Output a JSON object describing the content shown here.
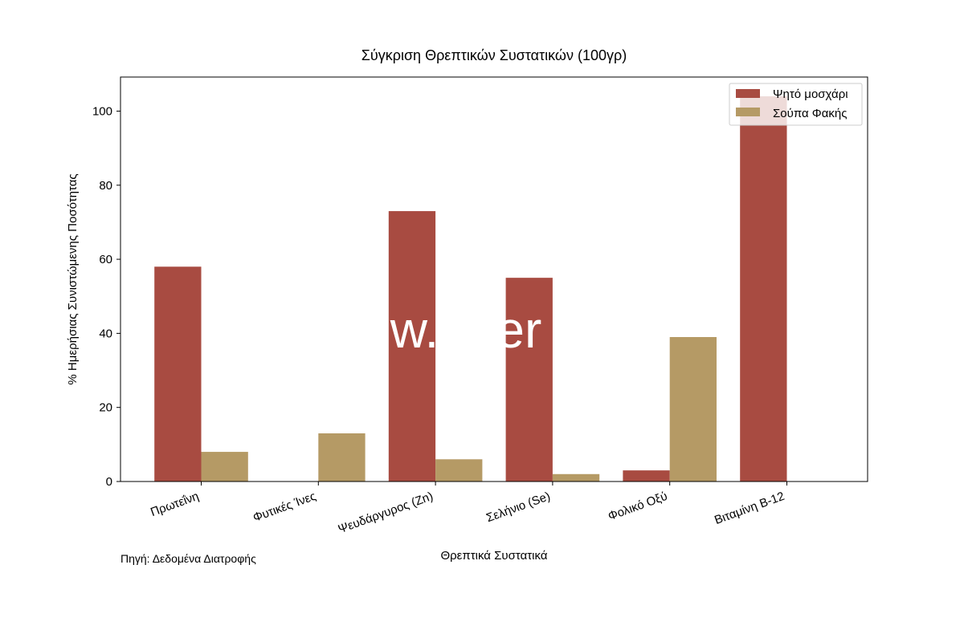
{
  "chart_data": {
    "type": "bar",
    "title": "Σύγκριση Θρεπτικών Συστατικών (100γρ)",
    "xlabel": "Θρεπτικά Συστατικά",
    "ylabel": "% Ημερήσιας Συνιστώμενης Ποσότητας",
    "categories": [
      "Πρωτεΐνη",
      "Φυτικές Ίνες",
      "Ψευδάργυρος (Zn)",
      "Σελήνιο (Se)",
      "Φολικό Οξύ",
      "Βιταμίνη B-12"
    ],
    "series": [
      {
        "name": "Ψητό μοσχάρι",
        "color": "#a84b41",
        "values": [
          58,
          0,
          73,
          55,
          3,
          104
        ]
      },
      {
        "name": "Σούπα Φακής",
        "color": "#b59a65",
        "values": [
          8,
          13,
          6,
          2,
          39,
          0
        ]
      }
    ],
    "ylim": [
      0,
      109.2
    ],
    "yticks": [
      0,
      20,
      40,
      60,
      80,
      100
    ],
    "grid": false,
    "legend_position": "top-right",
    "source_note": "Πηγή: Δεδομένα Διατροφής",
    "watermark": "w.    er"
  }
}
